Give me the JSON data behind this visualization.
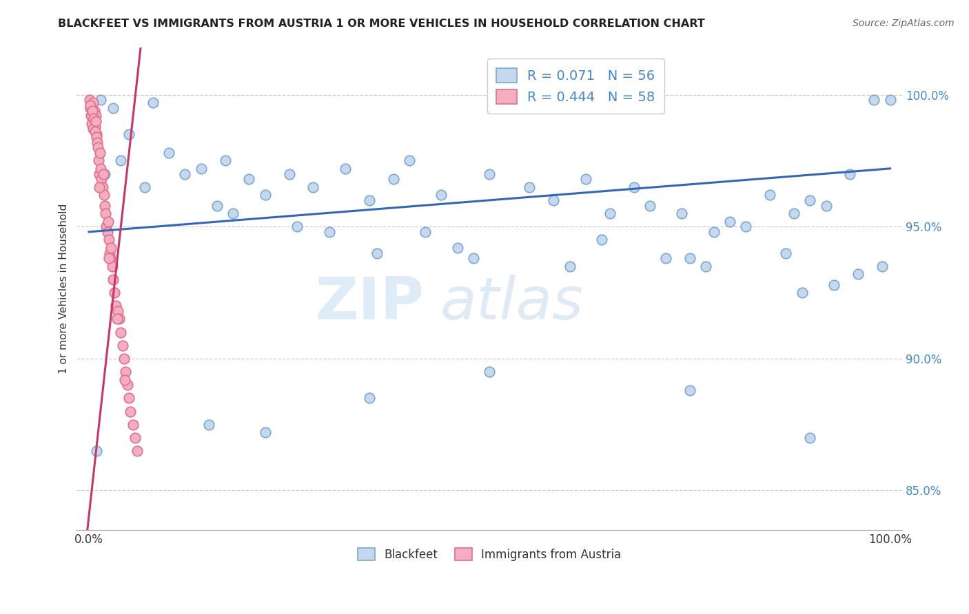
{
  "title": "BLACKFEET VS IMMIGRANTS FROM AUSTRIA 1 OR MORE VEHICLES IN HOUSEHOLD CORRELATION CHART",
  "source": "Source: ZipAtlas.com",
  "ylabel": "1 or more Vehicles in Household",
  "ytick_values": [
    85.0,
    90.0,
    95.0,
    100.0
  ],
  "ylim": [
    83.5,
    101.8
  ],
  "xlim": [
    -1.5,
    101.5
  ],
  "legend1_label": "R = 0.071   N = 56",
  "legend2_label": "R = 0.444   N = 58",
  "watermark_zip": "ZIP",
  "watermark_atlas": "atlas",
  "blue_dot_facecolor": "#c5d8ed",
  "blue_dot_edgecolor": "#7aaad0",
  "pink_dot_facecolor": "#f5aec0",
  "pink_dot_edgecolor": "#e07090",
  "trend_blue_color": "#3366bb",
  "trend_pink_color": "#cc3366",
  "grid_color": "#cccccc",
  "background_color": "#ffffff",
  "tick_color_blue": "#4488cc",
  "blue_x": [
    1.5,
    3.0,
    8.0,
    10.0,
    14.0,
    17.0,
    20.0,
    25.0,
    28.0,
    32.0,
    35.0,
    38.0,
    40.0,
    44.0,
    50.0,
    55.0,
    58.0,
    62.0,
    65.0,
    68.0,
    70.0,
    74.0,
    78.0,
    80.0,
    82.0,
    85.0,
    88.0,
    90.0,
    92.0,
    95.0,
    98.0,
    100.0,
    5.0,
    12.0,
    22.0,
    30.0,
    46.0,
    60.0,
    75.0,
    87.0,
    96.0,
    2.0,
    7.0,
    16.0,
    26.0,
    36.0,
    48.0,
    64.0,
    77.0,
    89.0,
    99.0,
    4.0,
    18.0,
    42.0,
    72.0,
    93.0
  ],
  "blue_y": [
    99.8,
    99.5,
    99.7,
    97.8,
    97.2,
    97.5,
    96.8,
    97.0,
    96.5,
    97.2,
    96.0,
    96.8,
    97.5,
    96.2,
    97.0,
    96.5,
    96.0,
    96.8,
    95.5,
    96.5,
    95.8,
    95.5,
    94.8,
    95.2,
    95.0,
    96.2,
    95.5,
    96.0,
    95.8,
    97.0,
    99.8,
    99.8,
    98.5,
    97.0,
    96.2,
    94.8,
    94.2,
    93.5,
    93.8,
    94.0,
    93.2,
    97.0,
    96.5,
    95.8,
    95.0,
    94.0,
    93.8,
    94.5,
    93.5,
    92.5,
    93.5,
    97.5,
    95.5,
    94.8,
    93.8,
    92.8
  ],
  "blue_y_outliers": [
    86.5,
    87.5,
    87.2,
    88.5,
    89.5,
    88.8,
    87.0
  ],
  "blue_x_outliers": [
    1.0,
    15.0,
    22.0,
    35.0,
    50.0,
    75.0,
    90.0
  ],
  "pink_x": [
    0.1,
    0.2,
    0.3,
    0.4,
    0.5,
    0.6,
    0.7,
    0.8,
    0.9,
    1.0,
    0.15,
    0.25,
    0.35,
    0.45,
    0.55,
    0.65,
    0.75,
    0.85,
    0.95,
    1.05,
    1.1,
    1.2,
    1.3,
    1.4,
    1.5,
    1.6,
    1.7,
    1.8,
    1.9,
    2.0,
    2.1,
    2.2,
    2.3,
    2.4,
    2.5,
    2.6,
    2.7,
    2.8,
    2.9,
    3.0,
    3.2,
    3.4,
    3.6,
    3.8,
    4.0,
    4.2,
    4.4,
    4.6,
    4.8,
    5.0,
    5.2,
    5.5,
    5.8,
    6.0,
    1.3,
    2.5,
    3.5,
    4.5
  ],
  "pink_y": [
    99.8,
    99.5,
    99.6,
    99.3,
    99.7,
    99.0,
    99.4,
    98.8,
    99.2,
    98.5,
    99.6,
    99.2,
    98.9,
    99.4,
    98.7,
    99.1,
    98.6,
    99.0,
    98.4,
    98.2,
    98.0,
    97.5,
    97.0,
    97.8,
    97.2,
    96.8,
    96.5,
    97.0,
    96.2,
    95.8,
    95.5,
    95.0,
    94.8,
    95.2,
    94.5,
    94.0,
    93.8,
    94.2,
    93.5,
    93.0,
    92.5,
    92.0,
    91.8,
    91.5,
    91.0,
    90.5,
    90.0,
    89.5,
    89.0,
    88.5,
    88.0,
    87.5,
    87.0,
    86.5,
    96.5,
    93.8,
    91.5,
    89.2
  ],
  "dot_size": 110
}
